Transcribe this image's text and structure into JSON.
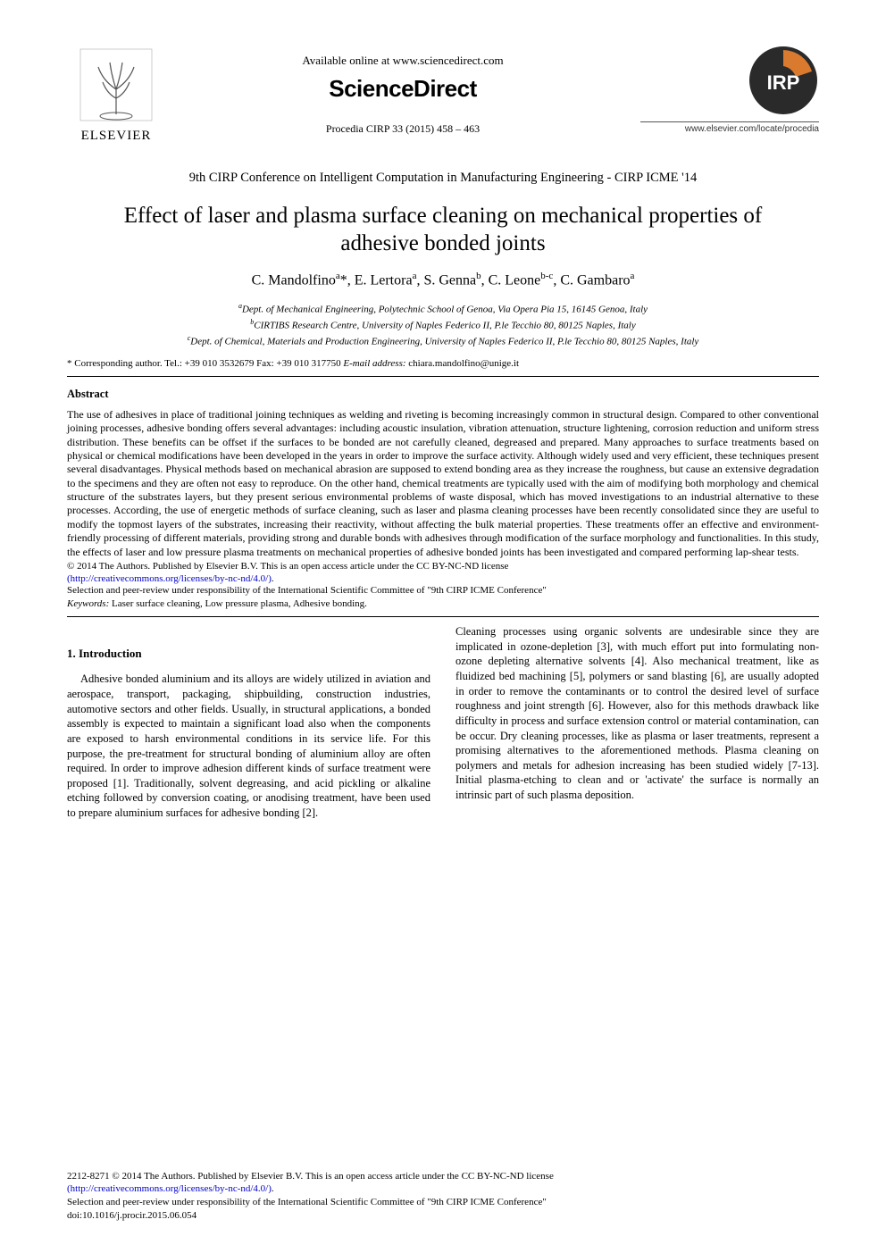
{
  "colors": {
    "background": "#ffffff",
    "text": "#000000",
    "link": "#0000cc",
    "rule": "#000000",
    "locate_border": "#555555",
    "irp_orange": "#d97a2e",
    "irp_dark": "#2a2a2a"
  },
  "typography": {
    "body_family": "Times New Roman",
    "sans_family": "Arial",
    "title_size_pt": 19,
    "authors_size_pt": 12,
    "body_size_pt": 9.5,
    "small_size_pt": 8.5
  },
  "header": {
    "elsevier_label": "ELSEVIER",
    "available_online": "Available online at www.sciencedirect.com",
    "science_direct": "ScienceDirect",
    "procedia_ref": "Procedia CIRP 33 (2015) 458 – 463",
    "locate_url": "www.elsevier.com/locate/procedia",
    "irp_text": "IRP"
  },
  "conference": "9th CIRP Conference on Intelligent Computation in Manufacturing Engineering - CIRP ICME '14",
  "title_line1": "Effect of laser and plasma surface cleaning on mechanical properties of",
  "title_line2": "adhesive bonded joints",
  "authors_html": "C. Mandolfino<sup>a</sup>*, E. Lertora<sup>a</sup>, S. Genna<sup>b</sup>, C. Leone<sup>b-c</sup>, C. Gambaro<sup>a</sup>",
  "affiliations": {
    "a": "Dept. of Mechanical Engineering, Polytechnic School of Genoa, Via Opera Pia 15, 16145 Genoa, Italy",
    "b": "CIRTIBS Research Centre, University of Naples Federico II, P.le Tecchio 80, 80125 Naples, Italy",
    "c": "Dept. of Chemical, Materials and Production Engineering, University of Naples Federico II, P.le Tecchio 80, 80125 Naples, Italy"
  },
  "corresponding": {
    "prefix": "* Corresponding author. Tel.: +39 010 3532679  Fax: +39 010 317750  ",
    "email_label": "E-mail address:",
    "email": " chiara.mandolfino@unige.it"
  },
  "abstract": {
    "heading": "Abstract",
    "body": "The use of adhesives in place of traditional joining techniques as welding and riveting is becoming increasingly common in structural design. Compared to other conventional joining processes, adhesive bonding offers several advantages: including acoustic insulation, vibration attenuation, structure lightening, corrosion reduction and uniform stress distribution. These benefits can be offset if the surfaces to be bonded are not carefully cleaned, degreased and prepared. Many approaches to surface treatments based on physical or chemical modifications have been developed in the years in order to improve the surface activity. Although widely used and very efficient, these techniques present several disadvantages. Physical methods based on mechanical abrasion are supposed to extend bonding area as they increase the roughness, but cause an extensive degradation to the specimens and they are often not easy to reproduce. On the other hand, chemical treatments are typically used with the aim of modifying both morphology and chemical structure of the substrates layers, but they present serious environmental problems of waste disposal, which has moved investigations to an industrial alternative to these processes. According, the use of energetic methods of surface cleaning, such as laser and plasma cleaning processes have been recently consolidated since they are useful to modify the topmost layers of the substrates, increasing their reactivity, without affecting the bulk material properties. These treatments offer an effective and environment-friendly processing of different materials, providing strong and durable bonds with adhesives through modification of the surface morphology and functionalities. In this study, the effects of laser and low pressure plasma treatments on mechanical properties of adhesive bonded joints has been investigated and compared performing lap-shear tests."
  },
  "copyright": {
    "line1": "© 2014 The Authors. Published by Elsevier B.V. This is an open access article under the CC BY-NC-ND license",
    "license_url_text": "(http://creativecommons.org/licenses/by-nc-nd/4.0/)",
    "license_url": "http://creativecommons.org/licenses/by-nc-nd/4.0/",
    "peer_review": "Selection and peer-review under responsibility of the International Scientific Committee of \"9th CIRP ICME Conference\""
  },
  "keywords": {
    "label": "Keywords:",
    "text": " Laser surface cleaning, Low pressure plasma, Adhesive bonding."
  },
  "intro": {
    "heading": "1. Introduction",
    "col1": "Adhesive bonded aluminium and its alloys are widely utilized in aviation and aerospace, transport, packaging, shipbuilding, construction industries, automotive sectors and other fields. Usually, in structural applications, a bonded assembly is expected to maintain a significant load also when the components are exposed to harsh environmental conditions in its service life. For this purpose, the pre-treatment for structural bonding of aluminium alloy are often required. In order to improve adhesion different kinds of surface treatment were proposed [1]. Traditionally, solvent degreasing, and acid pickling or alkaline etching followed by conversion coating, or anodising treatment, have been used to prepare aluminium surfaces for adhesive bonding [2].",
    "col2": "Cleaning processes using organic solvents are undesirable since they are implicated in ozone-depletion [3], with much effort put into formulating non-ozone depleting alternative solvents [4]. Also mechanical treatment, like as fluidized bed machining [5], polymers or sand blasting [6], are usually adopted in order to remove the contaminants or to control the desired level of surface roughness and joint strength [6]. However, also for this methods drawback like difficulty in process and surface extension control or material contamination, can be occur. Dry cleaning processes, like as plasma or laser treatments, represent a promising alternatives to the aforementioned methods. Plasma cleaning on polymers and metals for adhesion increasing has been studied widely [7-13]. Initial plasma-etching to clean and or 'activate' the surface is normally an intrinsic part of such plasma deposition."
  },
  "footer": {
    "issn_line": "2212-8271 © 2014 The Authors. Published by Elsevier B.V. This is an open access article under the CC BY-NC-ND license",
    "license_url_text": "(http://creativecommons.org/licenses/by-nc-nd/4.0/)",
    "license_url": "http://creativecommons.org/licenses/by-nc-nd/4.0/",
    "peer_review": "Selection and peer-review under responsibility of the International Scientific Committee of \"9th CIRP ICME Conference\"",
    "doi": "doi:10.1016/j.procir.2015.06.054"
  }
}
